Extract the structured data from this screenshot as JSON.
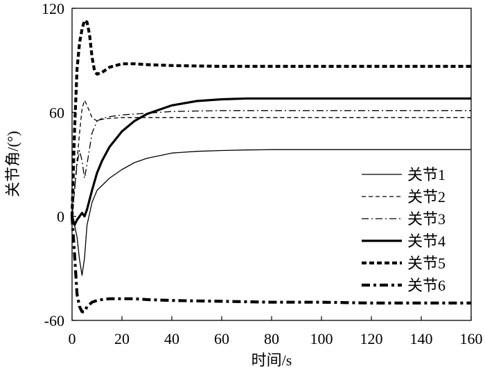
{
  "chart_data": {
    "type": "line",
    "xlabel": "时间/s",
    "ylabel": "关节角/(°)",
    "xlim": [
      0,
      160
    ],
    "ylim": [
      -60,
      120
    ],
    "xticks": [
      "0",
      "20",
      "40",
      "60",
      "80",
      "100",
      "120",
      "140",
      "160"
    ],
    "yticks": [
      "-60",
      "0",
      "60",
      "120"
    ],
    "grid": false,
    "legend": "right",
    "series": [
      {
        "name": "关节1",
        "style": "thin-solid",
        "x": [
          0,
          1,
          2,
          3,
          4,
          5,
          6,
          8,
          10,
          15,
          20,
          25,
          30,
          40,
          50,
          60,
          70,
          80,
          100,
          120,
          140,
          160
        ],
        "y": [
          0,
          -5,
          -12,
          -25,
          -34,
          -24,
          -5,
          8,
          15,
          22,
          27,
          31,
          33.5,
          36.5,
          37.5,
          38,
          38.3,
          38.5,
          38.5,
          38.5,
          38.5,
          38.5
        ]
      },
      {
        "name": "关节2",
        "style": "thin-dash",
        "x": [
          0,
          1,
          2,
          3,
          4,
          5,
          6,
          8,
          10,
          12,
          15,
          20,
          30,
          40,
          60,
          80,
          100,
          120,
          140,
          160
        ],
        "y": [
          0,
          15,
          32,
          48,
          62,
          67,
          64,
          57,
          55,
          56,
          56.5,
          57,
          57,
          57,
          57,
          57,
          57,
          57,
          57,
          57
        ]
      },
      {
        "name": "关节3",
        "style": "thin-dashdot",
        "x": [
          0,
          1,
          2,
          3,
          4,
          5,
          6,
          8,
          10,
          12,
          15,
          20,
          30,
          40,
          60,
          80,
          100,
          120,
          140,
          160
        ],
        "y": [
          0,
          15,
          30,
          38,
          32,
          22,
          30,
          48,
          55,
          56.5,
          57.5,
          58.5,
          59.5,
          60.5,
          61,
          61,
          61,
          61,
          61,
          61
        ]
      },
      {
        "name": "关节4",
        "style": "thick-solid",
        "x": [
          0,
          1,
          2,
          3,
          4,
          5,
          6,
          8,
          10,
          12,
          15,
          20,
          25,
          30,
          40,
          50,
          60,
          70,
          80,
          100,
          120,
          140,
          160
        ],
        "y": [
          0,
          -5,
          -2,
          0,
          2,
          0,
          4,
          15,
          25,
          32,
          40,
          49,
          55,
          59,
          64,
          66.5,
          67.5,
          68,
          68,
          68,
          68,
          68,
          68
        ]
      },
      {
        "name": "关节5",
        "style": "thick-dash",
        "x": [
          0,
          1,
          2,
          3,
          4,
          5,
          6,
          7,
          8,
          9,
          10,
          12,
          15,
          20,
          25,
          30,
          40,
          60,
          80,
          100,
          120,
          140,
          160
        ],
        "y": [
          0,
          50,
          85,
          100,
          108,
          113,
          112,
          105,
          92,
          84,
          82,
          83,
          86,
          88,
          88,
          87.5,
          87,
          86.5,
          86.5,
          86.5,
          86.5,
          86.5,
          86.5
        ]
      },
      {
        "name": "关节6",
        "style": "thick-dashdot",
        "x": [
          0,
          1,
          2,
          3,
          4,
          5,
          6,
          8,
          10,
          12,
          15,
          20,
          25,
          30,
          40,
          60,
          80,
          100,
          120,
          140,
          160
        ],
        "y": [
          0,
          -22,
          -45,
          -52,
          -55,
          -55,
          -52,
          -49.5,
          -48.5,
          -48,
          -47.5,
          -47.5,
          -47.5,
          -48,
          -48.5,
          -49,
          -49.5,
          -49.5,
          -50,
          -50,
          -50
        ]
      }
    ]
  }
}
